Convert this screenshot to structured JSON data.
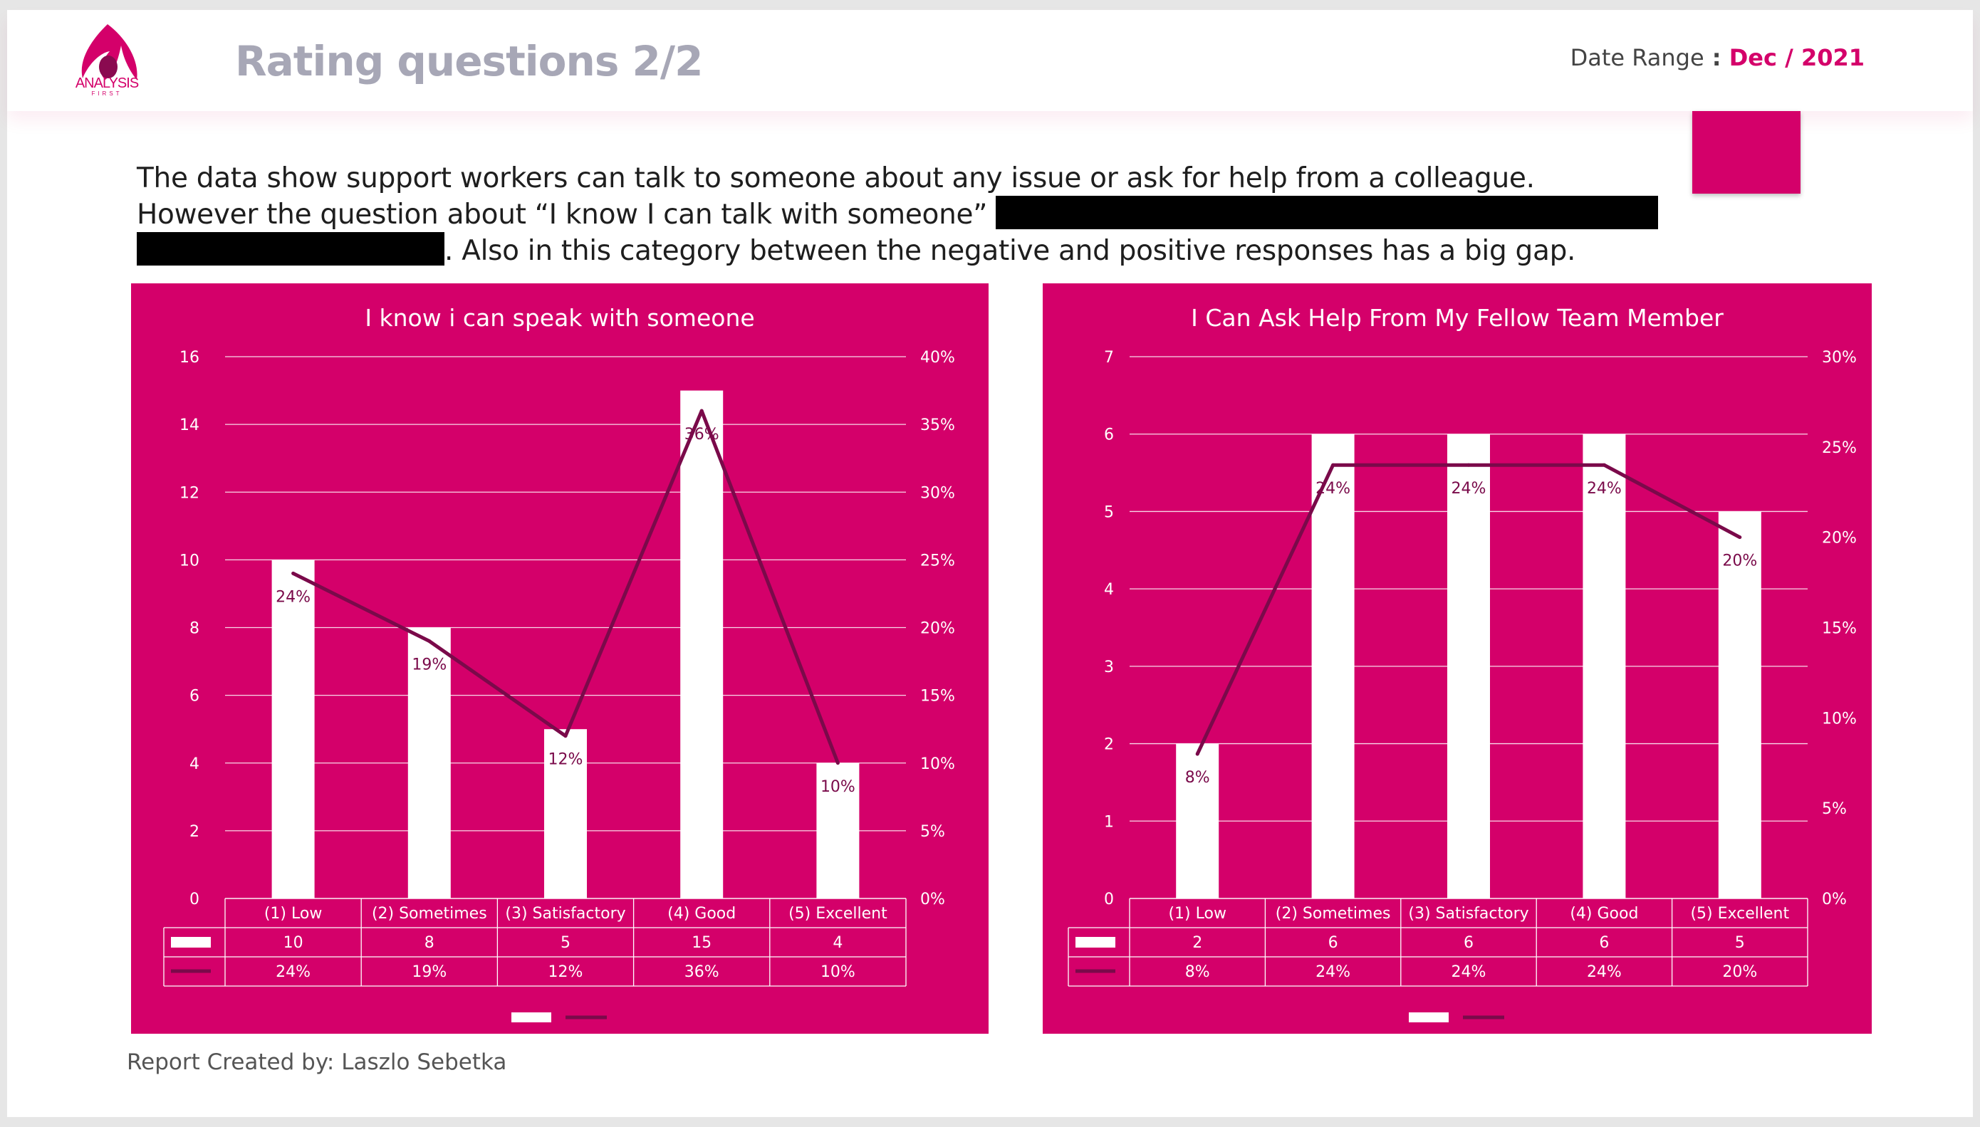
{
  "header": {
    "title": "Rating questions 2/2",
    "date_label": "Date Range",
    "date_sep": " : ",
    "date_value": "Dec / 2021"
  },
  "logo": {
    "text": "ANALYSIS",
    "subtext": "FIRST"
  },
  "description": {
    "line1": "The data show support workers can talk to someone about any issue or ask for help from a colleague.",
    "line2": "However the question about “I know I can talk with someone”",
    "line3": ". Also in this category between the negative and positive responses has a big gap."
  },
  "footer": {
    "text": "Report Created by: Laszlo Sebetka"
  },
  "colors": {
    "brand": "#d4006a",
    "line": "#7a0a4a",
    "bar": "#ffffff",
    "title_grey": "#a7a7b6"
  },
  "chart_data": [
    {
      "type": "bar",
      "title": "I know i can speak with someone",
      "categories": [
        "(1) Low",
        "(2) Sometimes",
        "(3) Satisfactory",
        "(4) Good",
        "(5) Excellent"
      ],
      "series": [
        {
          "kind": "bar",
          "axis": "left",
          "values": [
            10,
            8,
            5,
            15,
            4
          ]
        },
        {
          "kind": "line",
          "axis": "right",
          "values": [
            24,
            19,
            12,
            36,
            10
          ],
          "labels": [
            "24%",
            "19%",
            "12%",
            "36%",
            "10%"
          ]
        }
      ],
      "ylim": [
        0,
        16
      ],
      "yticks": [
        "0",
        "2",
        "4",
        "6",
        "8",
        "10",
        "12",
        "14",
        "16"
      ],
      "y2lim": [
        0,
        40
      ],
      "y2ticks": [
        "0%",
        "5%",
        "10%",
        "15%",
        "20%",
        "25%",
        "30%",
        "35%",
        "40%"
      ],
      "table": [
        [
          "10",
          "8",
          "5",
          "15",
          "4"
        ],
        [
          "24%",
          "19%",
          "12%",
          "36%",
          "10%"
        ]
      ],
      "grid": true,
      "legend": "bottom"
    },
    {
      "type": "bar",
      "title": "I Can Ask Help From My Fellow Team Member",
      "categories": [
        "(1) Low",
        "(2) Sometimes",
        "(3) Satisfactory",
        "(4) Good",
        "(5) Excellent"
      ],
      "series": [
        {
          "kind": "bar",
          "axis": "left",
          "values": [
            2,
            6,
            6,
            6,
            5
          ]
        },
        {
          "kind": "line",
          "axis": "right",
          "values": [
            8,
            24,
            24,
            24,
            20
          ],
          "labels": [
            "8%",
            "24%",
            "24%",
            "24%",
            "20%"
          ]
        }
      ],
      "ylim": [
        0,
        7
      ],
      "yticks": [
        "0",
        "1",
        "2",
        "3",
        "4",
        "5",
        "6",
        "7"
      ],
      "y2lim": [
        0,
        30
      ],
      "y2ticks": [
        "0%",
        "5%",
        "10%",
        "15%",
        "20%",
        "25%",
        "30%"
      ],
      "table": [
        [
          "2",
          "6",
          "6",
          "6",
          "5"
        ],
        [
          "8%",
          "24%",
          "24%",
          "24%",
          "20%"
        ]
      ],
      "grid": true,
      "legend": "bottom"
    }
  ]
}
